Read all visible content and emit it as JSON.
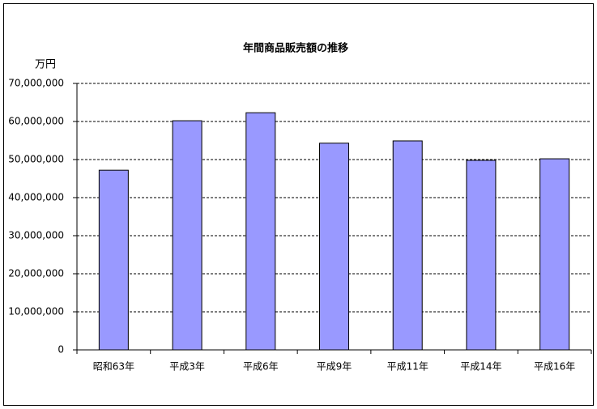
{
  "chart_data": {
    "type": "bar",
    "title": "年間商品販売額の推移",
    "y_label": "万円",
    "categories": [
      "昭和63年",
      "平成3年",
      "平成6年",
      "平成9年",
      "平成11年",
      "平成14年",
      "平成16年"
    ],
    "values": [
      47200000,
      60200000,
      62300000,
      54300000,
      54900000,
      49800000,
      50200000
    ],
    "color": "#9999ff",
    "ylim": [
      0,
      70000000
    ],
    "yticks": [
      0,
      {
        "value": 10000000,
        "label": "10,000,000"
      },
      {
        "value": 20000000,
        "label": "20,000,000"
      },
      {
        "value": 30000000,
        "label": "30,000,000"
      },
      {
        "value": 40000000,
        "label": "40,000,000"
      },
      {
        "value": 50000000,
        "label": "50,000,000"
      },
      {
        "value": 60000000,
        "label": "60,000,000"
      },
      {
        "value": 70000000,
        "label": "70,000,000"
      }
    ],
    "grid": true
  }
}
